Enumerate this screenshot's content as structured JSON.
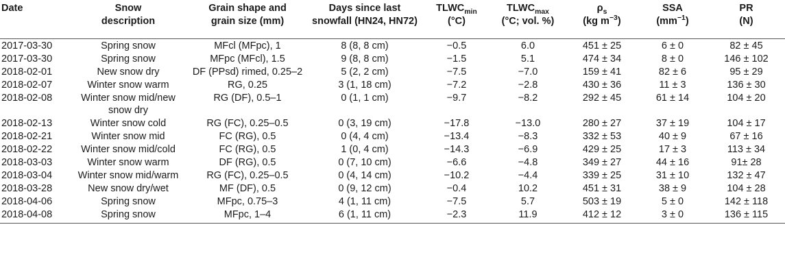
{
  "table": {
    "headers": {
      "date": "Date",
      "snow_description": [
        "Snow",
        "description"
      ],
      "grain": [
        "Grain shape and",
        "grain size (mm)"
      ],
      "days": [
        "Days since last",
        "snowfall (HN24, HN72)"
      ],
      "tlwc_min": {
        "base": "TLWC",
        "sub": "min",
        "unit": "(°C)"
      },
      "tlwc_max": {
        "base": "TLWC",
        "sub": "max",
        "unit": "(°C; vol. %)"
      },
      "rho": {
        "base": "ρ",
        "sub": "s",
        "unit_pre": "(kg m",
        "unit_sup": "−3",
        "unit_post": ")"
      },
      "ssa": {
        "base": "SSA",
        "unit_pre": "(mm",
        "unit_sup": "−1",
        "unit_post": ")"
      },
      "pr": {
        "base": "PR",
        "unit": "(N)"
      }
    },
    "rows": [
      {
        "date": "2017-03-30",
        "desc": "Spring snow",
        "grain": "MFcl (MFpc), 1",
        "days": "8 (8, 8 cm)",
        "tmin": "−0.5",
        "tmax": "6.0",
        "rho": "451 ± 25",
        "ssa": "6 ± 0",
        "pr": "82 ± 45"
      },
      {
        "date": "2017-03-30",
        "desc": "Spring snow",
        "grain": "MFpc (MFcl), 1.5",
        "days": "9 (8, 8 cm)",
        "tmin": "−1.5",
        "tmax": "5.1",
        "rho": "474 ± 34",
        "ssa": "8 ± 0",
        "pr": "146 ± 102"
      },
      {
        "date": "2018-02-01",
        "desc": "New snow dry",
        "grain": "DF (PPsd) rimed, 0.25–2",
        "days": "5 (2, 2 cm)",
        "tmin": "−7.5",
        "tmax": "−7.0",
        "rho": "159 ± 41",
        "ssa": "82 ± 6",
        "pr": "95 ± 29"
      },
      {
        "date": "2018-02-07",
        "desc": "Winter snow warm",
        "grain": "RG, 0.25",
        "days": "3 (1, 18 cm)",
        "tmin": "−7.2",
        "tmax": "−2.8",
        "rho": "430 ± 36",
        "ssa": "11 ± 3",
        "pr": "136 ± 30"
      },
      {
        "date": "2018-02-08",
        "desc": "Winter snow mid/new snow dry",
        "grain": "RG (DF), 0.5–1",
        "days": "0 (1, 1 cm)",
        "tmin": "−9.7",
        "tmax": "−8.2",
        "rho": "292 ± 45",
        "ssa": "61 ± 14",
        "pr": "104 ± 20"
      },
      {
        "date": "2018-02-13",
        "desc": "Winter snow cold",
        "grain": "RG (FC), 0.25–0.5",
        "days": "0 (3, 19 cm)",
        "tmin": "−17.8",
        "tmax": "−13.0",
        "rho": "280 ± 27",
        "ssa": "37 ± 19",
        "pr": "104 ± 17"
      },
      {
        "date": "2018-02-21",
        "desc": "Winter snow mid",
        "grain": "FC (RG), 0.5",
        "days": "0 (4, 4 cm)",
        "tmin": "−13.4",
        "tmax": "−8.3",
        "rho": "332 ± 53",
        "ssa": "40 ± 9",
        "pr": "67 ± 16"
      },
      {
        "date": "2018-02-22",
        "desc": "Winter snow mid/cold",
        "grain": "FC (RG), 0.5",
        "days": "1 (0, 4 cm)",
        "tmin": "−14.3",
        "tmax": "−6.9",
        "rho": "429 ± 25",
        "ssa": "17 ± 3",
        "pr": "113 ± 34"
      },
      {
        "date": "2018-03-03",
        "desc": "Winter snow warm",
        "grain": "DF (RG), 0.5",
        "days": "0 (7, 10 cm)",
        "tmin": "−6.6",
        "tmax": "−4.8",
        "rho": "349 ± 27",
        "ssa": "44 ± 16",
        "pr": "91± 28"
      },
      {
        "date": "2018-03-04",
        "desc": "Winter snow mid/warm",
        "grain": "RG (FC), 0.25–0.5",
        "days": "0 (4, 14 cm)",
        "tmin": "−10.2",
        "tmax": "−4.4",
        "rho": "339 ± 25",
        "ssa": "31 ± 10",
        "pr": "132 ± 47"
      },
      {
        "date": "2018-03-28",
        "desc": "New snow dry/wet",
        "grain": "MF (DF), 0.5",
        "days": "0 (9, 12 cm)",
        "tmin": "−0.4",
        "tmax": "10.2",
        "rho": "451 ± 31",
        "ssa": "38 ± 9",
        "pr": "104 ± 28"
      },
      {
        "date": "2018-04-06",
        "desc": "Spring snow",
        "grain": "MFpc, 0.75–3",
        "days": "4 (1, 11 cm)",
        "tmin": "−7.5",
        "tmax": "5.7",
        "rho": "503 ± 19",
        "ssa": "5 ± 0",
        "pr": "142 ± 118"
      },
      {
        "date": "2018-04-08",
        "desc": "Spring snow",
        "grain": "MFpc, 1–4",
        "days": "6 (1, 11 cm)",
        "tmin": "−2.3",
        "tmax": "11.9",
        "rho": "412 ± 12",
        "ssa": "3 ± 0",
        "pr": "136 ± 115"
      }
    ]
  }
}
